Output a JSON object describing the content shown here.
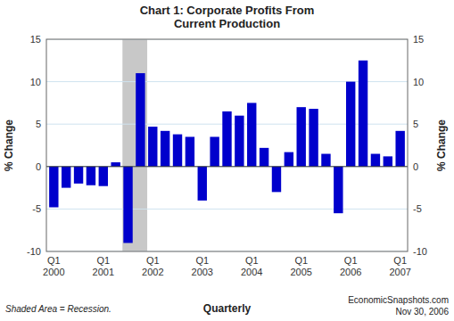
{
  "chart_data": {
    "type": "bar",
    "title": "Chart 1: Corporate Profits From\nCurrent Production",
    "y_label": "% Change",
    "y2_label": "% Change",
    "x_label": "Quarterly",
    "categories": [
      "Q1\n2000",
      null,
      null,
      null,
      "Q1\n2001",
      null,
      null,
      null,
      "Q1\n2002",
      null,
      null,
      null,
      "Q1\n2003",
      null,
      null,
      null,
      "Q1\n2004",
      null,
      null,
      null,
      "Q1\n2005",
      null,
      null,
      null,
      "Q1\n2006",
      null,
      null,
      null,
      "Q1\n2007"
    ],
    "values": [
      -4.8,
      -2.5,
      -2.0,
      -2.2,
      -2.3,
      0.5,
      -9.0,
      11.0,
      4.7,
      4.2,
      3.8,
      3.5,
      -4.0,
      3.5,
      6.5,
      6.0,
      7.5,
      2.2,
      -3.0,
      1.7,
      7.0,
      6.8,
      1.5,
      -5.5,
      10.0,
      12.5,
      1.5,
      1.2,
      4.2
    ],
    "color": "#0000cc",
    "ylim": [
      -10,
      15
    ],
    "yticks": [
      -10,
      -5,
      0,
      5,
      10,
      15
    ],
    "y2lim": [
      -10,
      15
    ],
    "y2ticks": [
      -10,
      -5,
      0,
      5,
      10,
      15
    ],
    "grid": true,
    "shade": {
      "x": [
        5.55,
        7.55
      ],
      "color": "#c8c8c8"
    },
    "annotations": [
      "Shaded Area = Recession.",
      "EconomicSnapshots.com",
      "Nov 30, 2006"
    ]
  }
}
